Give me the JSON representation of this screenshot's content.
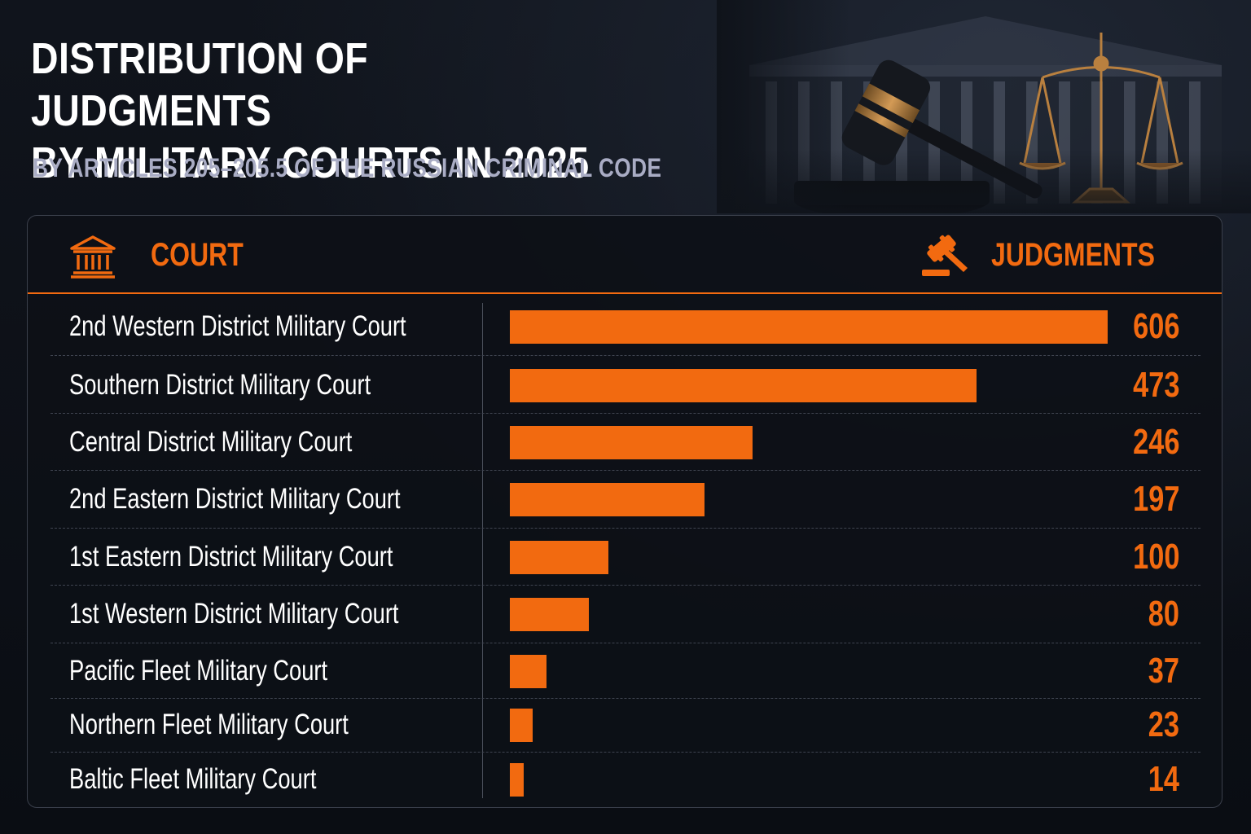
{
  "title_line1": "DISTRIBUTION OF JUDGMENTS",
  "title_line2": "BY MILITARY COURTS IN 2025",
  "subtitle": "BY ARTICLES 205–205.5 OF THE RUSSIAN CRIMINAL CODE",
  "header": {
    "court_label": "COURT",
    "judgments_label": "JUDGMENTS",
    "court_icon": "courthouse-icon",
    "judgments_icon": "gavel-icon"
  },
  "colors": {
    "accent": "#f26a10",
    "background": "#0b0e14",
    "subtitle": "#a9acc4"
  },
  "chart_data": {
    "type": "bar",
    "orientation": "horizontal",
    "categories": [
      "2nd Western District Military Court",
      "Southern District Military Court",
      "Central District Military Court",
      "2nd Eastern District Military Court",
      "1st Eastern District Military Court",
      "1st Western District Military Court",
      "Pacific Fleet Military Court",
      "Northern Fleet Military Court",
      "Baltic Fleet Military Court"
    ],
    "values": [
      606,
      473,
      246,
      197,
      100,
      80,
      37,
      23,
      14
    ],
    "title": "DISTRIBUTION OF JUDGMENTS BY MILITARY COURTS IN 2025",
    "subtitle": "BY ARTICLES 205–205.5 OF THE RUSSIAN CRIMINAL CODE",
    "xlabel": "JUDGMENTS",
    "ylabel": "COURT",
    "xlim": [
      0,
      606
    ],
    "grid": false,
    "legend": "none",
    "data_labels": true
  }
}
